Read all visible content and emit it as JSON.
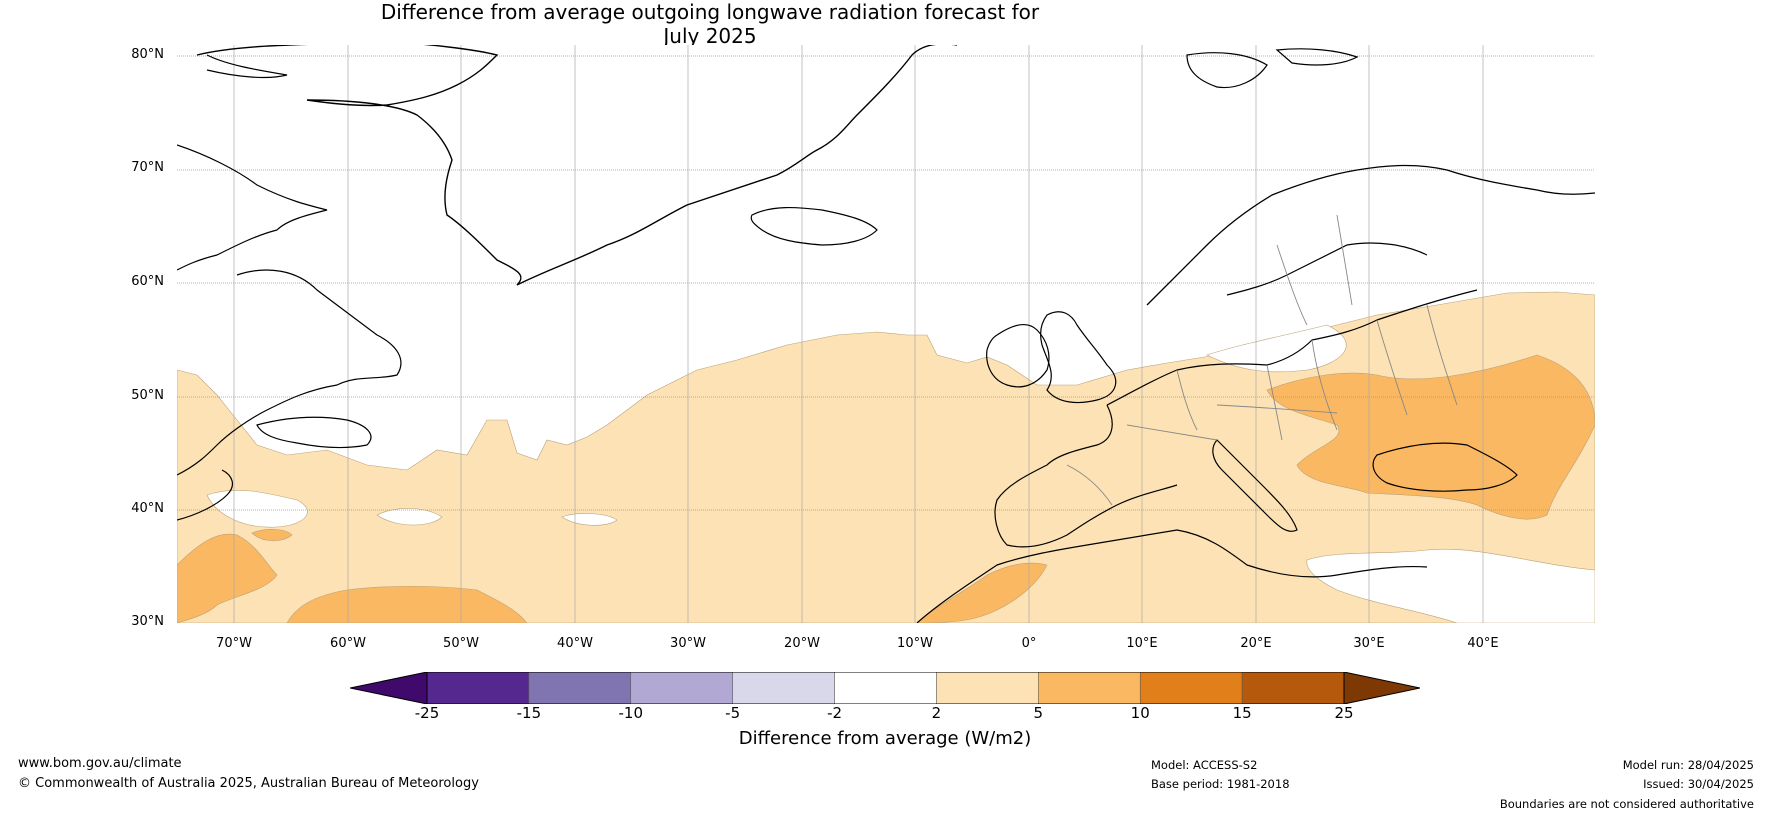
{
  "title": "Difference from average outgoing longwave radiation forecast for",
  "subtitle": "July 2025",
  "map": {
    "lat_labels": [
      "80°N",
      "70°N",
      "60°N",
      "50°N",
      "40°N",
      "30°N"
    ],
    "lon_labels": [
      "70°W",
      "60°W",
      "50°W",
      "40°W",
      "30°W",
      "20°W",
      "10°W",
      "0°",
      "10°E",
      "20°E",
      "30°E",
      "40°E"
    ],
    "colors": {
      "ocean": "#ffffff",
      "pos_2_5": "#fce2b4",
      "pos_5_10": "#fbb862",
      "grid": "#999999",
      "coast": "#000000",
      "border": "#888888"
    }
  },
  "colorbar": {
    "title": "Difference from average (W/m2)",
    "ticks": [
      "-25",
      "-15",
      "-10",
      "-5",
      "-2",
      "2",
      "5",
      "10",
      "15",
      "25"
    ],
    "colors": [
      "#3f0a6b",
      "#55288f",
      "#8075b1",
      "#b1a9d4",
      "#d9d8eb",
      "#ffffff",
      "#fce2b4",
      "#fbb862",
      "#e17f1b",
      "#b55a0c",
      "#7d3804"
    ]
  },
  "footer": {
    "website": "www.bom.gov.au/climate",
    "copyright": "© Commonwealth of Australia 2025, Australian Bureau of Meteorology",
    "model": "Model: ACCESS-S2",
    "base_period": "Base period: 1981-2018",
    "model_run": "Model run: 28/04/2025",
    "issued": "Issued: 30/04/2025",
    "disclaimer": "Boundaries are not considered authoritative"
  }
}
